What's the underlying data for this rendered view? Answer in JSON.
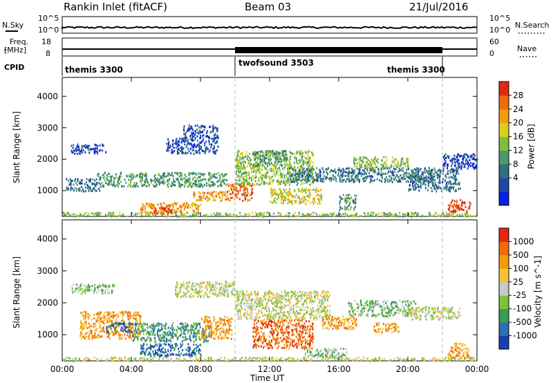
{
  "header": {
    "station": "Rankin Inlet (fitACF)",
    "beam": "Beam 03",
    "date": "21/Jul/2016"
  },
  "strip": {
    "nsky_label": "N.Sky",
    "nsky_top": "10^5",
    "nsky_bottom": "10^0",
    "nsearch_label": "N.Search",
    "nsearch_top": "10^5",
    "nsearch_bottom": "10^0",
    "freq_label": "Freq.",
    "freq_unit": "[MHz]",
    "freq_top": "18",
    "freq_bottom": "8",
    "nave_label": "Nave",
    "nave_top": "60",
    "nave_bottom": "0",
    "cpid_label": "CPID",
    "cpid_segments": [
      {
        "name": "themis 3300",
        "start_h": 0,
        "end_h": 10
      },
      {
        "name": "twofsound 3503",
        "start_h": 10,
        "end_h": 22
      },
      {
        "name": "themis 3300",
        "start_h": 22,
        "end_h": 24
      }
    ]
  },
  "chart_data": [
    {
      "type": "heatmap",
      "panel": "power",
      "ylabel": "Slant Range [km]",
      "yticks": [
        1000,
        2000,
        3000,
        4000
      ],
      "ylim": [
        180,
        4600
      ],
      "xlim": [
        0,
        24
      ],
      "colorbar": {
        "label": "Power [dB]",
        "ticks": [
          "28",
          "24",
          "20",
          "16",
          "12",
          "8",
          "4"
        ],
        "colors": [
          "#0b1fe6",
          "#2345a8",
          "#2f6f82",
          "#4a9a6a",
          "#7fbf3f",
          "#d8d020",
          "#f39c12",
          "#f06a10",
          "#e02a10"
        ]
      },
      "mode_boundaries_h": [
        10,
        22
      ],
      "echo_regions": [
        {
          "x0": 0.0,
          "x1": 24.0,
          "y0": 200,
          "y1": 330,
          "level": 4
        },
        {
          "x0": 0.2,
          "x1": 2.2,
          "y0": 1000,
          "y1": 1400,
          "level": 2
        },
        {
          "x0": 2.0,
          "x1": 9.5,
          "y0": 1150,
          "y1": 1600,
          "level": 3
        },
        {
          "x0": 4.5,
          "x1": 8.0,
          "y0": 320,
          "y1": 650,
          "level": 6
        },
        {
          "x0": 5.2,
          "x1": 6.3,
          "y0": 300,
          "y1": 520,
          "level": 8
        },
        {
          "x0": 7.5,
          "x1": 9.5,
          "y0": 700,
          "y1": 1000,
          "level": 6
        },
        {
          "x0": 9.5,
          "x1": 11.0,
          "y0": 700,
          "y1": 1250,
          "level": 7
        },
        {
          "x0": 10.0,
          "x1": 14.5,
          "y0": 1200,
          "y1": 2300,
          "level": 4
        },
        {
          "x0": 11.0,
          "x1": 13.0,
          "y0": 1800,
          "y1": 2300,
          "level": 3
        },
        {
          "x0": 12.0,
          "x1": 15.0,
          "y0": 600,
          "y1": 1100,
          "level": 5
        },
        {
          "x0": 13.0,
          "x1": 21.5,
          "y0": 1300,
          "y1": 1750,
          "level": 2
        },
        {
          "x0": 16.0,
          "x1": 17.0,
          "y0": 400,
          "y1": 900,
          "level": 3
        },
        {
          "x0": 16.8,
          "x1": 20.0,
          "y0": 1750,
          "y1": 2100,
          "level": 4
        },
        {
          "x0": 20.0,
          "x1": 23.0,
          "y0": 1000,
          "y1": 1700,
          "level": 2
        },
        {
          "x0": 22.3,
          "x1": 23.6,
          "y0": 350,
          "y1": 750,
          "level": 8
        },
        {
          "x0": 0.5,
          "x1": 2.5,
          "y0": 2200,
          "y1": 2500,
          "level": 1
        },
        {
          "x0": 6.0,
          "x1": 9.0,
          "y0": 2200,
          "y1": 2700,
          "level": 1
        },
        {
          "x0": 7.0,
          "x1": 9.0,
          "y0": 2700,
          "y1": 3100,
          "level": 1
        },
        {
          "x0": 22.0,
          "x1": 24.0,
          "y0": 1700,
          "y1": 2200,
          "level": 1
        }
      ]
    },
    {
      "type": "heatmap",
      "panel": "velocity",
      "ylabel": "Slant Range [km]",
      "xlabel": "Time UT",
      "xticks": [
        "00:00",
        "04:00",
        "08:00",
        "12:00",
        "16:00",
        "20:00",
        "00:00"
      ],
      "yticks": [
        1000,
        2000,
        3000,
        4000
      ],
      "ylim": [
        180,
        4600
      ],
      "xlim": [
        0,
        24
      ],
      "colorbar": {
        "label": "Velocity [m s^-1]",
        "ticks": [
          "1000",
          "500",
          "100",
          "25",
          "-25",
          "-100",
          "-500",
          "-1000"
        ],
        "colors": [
          "#1a3fb0",
          "#2d6fb8",
          "#3a9a5a",
          "#7cc33b",
          "#c8c8c8",
          "#f4c430",
          "#f39c12",
          "#f06a10",
          "#e02a10"
        ]
      },
      "mode_boundaries_h": [
        10,
        22
      ],
      "echo_regions": [
        {
          "x0": 0.0,
          "x1": 24.0,
          "y0": 200,
          "y1": 320,
          "level": 4
        },
        {
          "x0": 1.0,
          "x1": 4.5,
          "y0": 900,
          "y1": 1750,
          "level": 6
        },
        {
          "x0": 2.5,
          "x1": 4.0,
          "y0": 1100,
          "y1": 1400,
          "level": 1
        },
        {
          "x0": 4.5,
          "x1": 8.0,
          "y0": 350,
          "y1": 750,
          "level": 1
        },
        {
          "x0": 4.0,
          "x1": 8.5,
          "y0": 800,
          "y1": 1400,
          "level": 2
        },
        {
          "x0": 8.0,
          "x1": 9.8,
          "y0": 900,
          "y1": 1600,
          "level": 6
        },
        {
          "x0": 10.0,
          "x1": 15.5,
          "y0": 1500,
          "y1": 2400,
          "level": 4
        },
        {
          "x0": 11.0,
          "x1": 14.5,
          "y0": 600,
          "y1": 1500,
          "level": 7
        },
        {
          "x0": 15.0,
          "x1": 17.0,
          "y0": 1200,
          "y1": 1600,
          "level": 6
        },
        {
          "x0": 16.5,
          "x1": 20.5,
          "y0": 1600,
          "y1": 2100,
          "level": 3
        },
        {
          "x0": 18.0,
          "x1": 19.5,
          "y0": 1100,
          "y1": 1400,
          "level": 6
        },
        {
          "x0": 20.0,
          "x1": 23.0,
          "y0": 1500,
          "y1": 1900,
          "level": 4
        },
        {
          "x0": 22.3,
          "x1": 23.5,
          "y0": 300,
          "y1": 750,
          "level": 6
        },
        {
          "x0": 6.5,
          "x1": 10.0,
          "y0": 2200,
          "y1": 2700,
          "level": 4
        },
        {
          "x0": 0.5,
          "x1": 3.0,
          "y0": 2300,
          "y1": 2600,
          "level": 3
        },
        {
          "x0": 14.0,
          "x1": 16.5,
          "y0": 300,
          "y1": 600,
          "level": 3
        }
      ]
    }
  ]
}
